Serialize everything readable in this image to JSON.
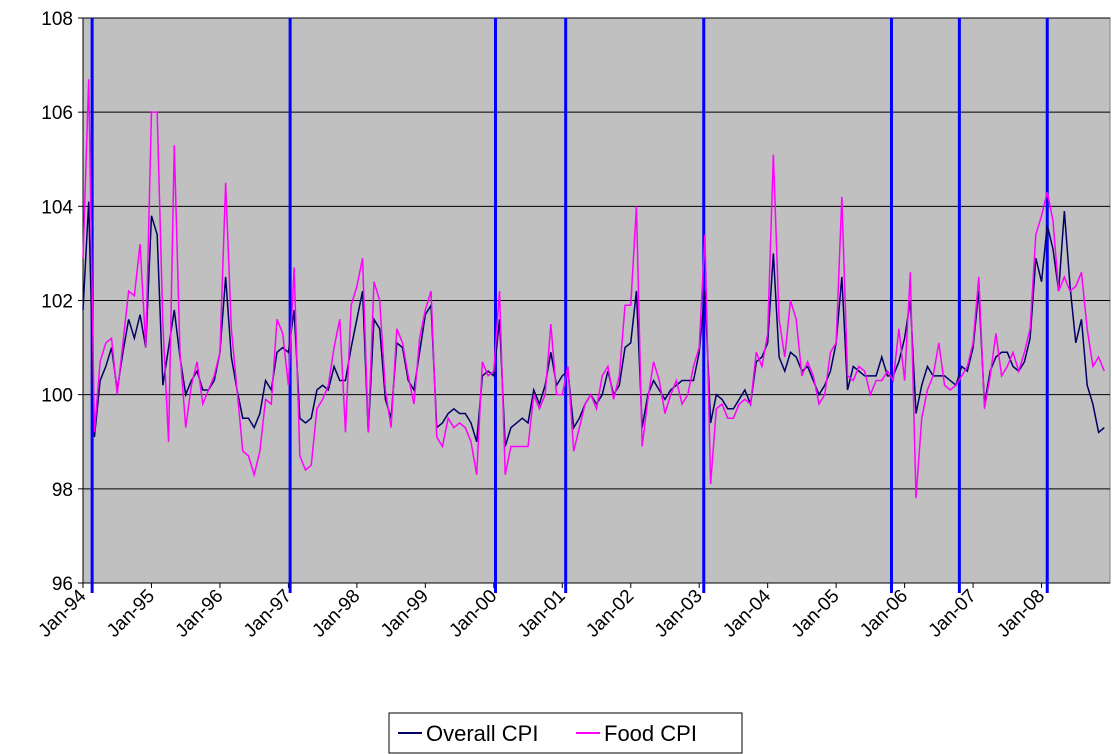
{
  "chart_data": {
    "type": "line",
    "categories": [
      "Jan-94",
      null,
      null,
      null,
      null,
      null,
      null,
      null,
      null,
      null,
      null,
      null,
      "Jan-95",
      null,
      null,
      null,
      null,
      null,
      null,
      null,
      null,
      null,
      null,
      null,
      "Jan-96",
      null,
      null,
      null,
      null,
      null,
      null,
      null,
      null,
      null,
      null,
      null,
      "Jan-97",
      null,
      null,
      null,
      null,
      null,
      null,
      null,
      null,
      null,
      null,
      null,
      "Jan-98",
      null,
      null,
      null,
      null,
      null,
      null,
      null,
      null,
      null,
      null,
      null,
      "Jan-99",
      null,
      null,
      null,
      null,
      null,
      null,
      null,
      null,
      null,
      null,
      null,
      "Jan-00",
      null,
      null,
      null,
      null,
      null,
      null,
      null,
      null,
      null,
      null,
      null,
      "Jan-01",
      null,
      null,
      null,
      null,
      null,
      null,
      null,
      null,
      null,
      null,
      null,
      "Jan-02",
      null,
      null,
      null,
      null,
      null,
      null,
      null,
      null,
      null,
      null,
      null,
      "Jan-03",
      null,
      null,
      null,
      null,
      null,
      null,
      null,
      null,
      null,
      null,
      null,
      "Jan-04",
      null,
      null,
      null,
      null,
      null,
      null,
      null,
      null,
      null,
      null,
      null,
      "Jan-05",
      null,
      null,
      null,
      null,
      null,
      null,
      null,
      null,
      null,
      null,
      null,
      "Jan-06",
      null,
      null,
      null,
      null,
      null,
      null,
      null,
      null,
      null,
      null,
      null,
      "Jan-07",
      null,
      null,
      null,
      null,
      null,
      null,
      null,
      null,
      null,
      null,
      null,
      "Jan-08",
      null,
      null,
      null,
      null,
      null,
      null,
      null,
      null,
      null,
      null,
      null
    ],
    "series": [
      {
        "name": "Overall CPI",
        "color": "#000066",
        "values": [
          101.8,
          104.1,
          99.1,
          100.3,
          100.6,
          101.0,
          100.1,
          100.9,
          101.6,
          101.2,
          101.7,
          101.0,
          103.8,
          103.4,
          100.2,
          101.0,
          101.8,
          100.8,
          100.0,
          100.3,
          100.5,
          100.1,
          100.1,
          100.3,
          100.9,
          102.5,
          100.8,
          100.1,
          99.5,
          99.5,
          99.3,
          99.6,
          100.3,
          100.1,
          100.9,
          101.0,
          100.9,
          101.8,
          99.5,
          99.4,
          99.5,
          100.1,
          100.2,
          100.1,
          100.6,
          100.3,
          100.3,
          101.0,
          101.6,
          102.2,
          99.2,
          101.6,
          101.4,
          99.9,
          99.5,
          101.1,
          101.0,
          100.3,
          100.1,
          100.9,
          101.7,
          101.9,
          99.3,
          99.4,
          99.6,
          99.7,
          99.6,
          99.6,
          99.4,
          99.0,
          100.4,
          100.5,
          100.4,
          101.6,
          98.9,
          99.3,
          99.4,
          99.5,
          99.4,
          100.1,
          99.8,
          100.2,
          100.9,
          100.2,
          100.4,
          100.5,
          99.3,
          99.5,
          99.8,
          100.0,
          99.8,
          100.0,
          100.5,
          100.0,
          100.2,
          101.0,
          101.1,
          102.2,
          99.3,
          100.0,
          100.3,
          100.1,
          99.9,
          100.1,
          100.2,
          100.3,
          100.3,
          100.3,
          100.9,
          102.2,
          99.4,
          100.0,
          99.9,
          99.7,
          99.7,
          99.9,
          100.1,
          99.8,
          100.7,
          100.8,
          101.1,
          103.0,
          100.8,
          100.5,
          100.9,
          100.8,
          100.5,
          100.6,
          100.3,
          100.0,
          100.2,
          100.5,
          101.1,
          102.5,
          100.1,
          100.6,
          100.5,
          100.4,
          100.4,
          100.4,
          100.8,
          100.4,
          100.4,
          100.7,
          101.2,
          102.0,
          99.6,
          100.2,
          100.6,
          100.4,
          100.4,
          100.4,
          100.3,
          100.2,
          100.6,
          100.5,
          101.0,
          102.2,
          99.8,
          100.5,
          100.8,
          100.9,
          100.9,
          100.6,
          100.5,
          100.7,
          101.2,
          102.9,
          102.4,
          103.6,
          103.1,
          102.2,
          103.9,
          102.3,
          101.1,
          101.6,
          100.2,
          99.8,
          99.2,
          99.3
        ]
      },
      {
        "name": "Food CPI",
        "color": "#ff00ff",
        "values": [
          102.9,
          106.7,
          99.2,
          100.7,
          101.1,
          101.2,
          100.0,
          101.1,
          102.2,
          102.1,
          103.2,
          101.0,
          106.0,
          106.0,
          101.5,
          99.0,
          105.3,
          100.9,
          99.3,
          100.2,
          100.7,
          99.8,
          100.1,
          100.4,
          100.9,
          104.5,
          101.4,
          100.1,
          98.8,
          98.7,
          98.3,
          98.8,
          99.9,
          99.8,
          101.6,
          101.3,
          100.2,
          102.7,
          98.7,
          98.4,
          98.5,
          99.7,
          99.9,
          100.2,
          101.0,
          101.6,
          99.2,
          101.9,
          102.3,
          102.9,
          99.2,
          102.4,
          102.0,
          100.1,
          99.3,
          101.4,
          101.1,
          100.4,
          99.8,
          101.2,
          101.8,
          102.2,
          99.1,
          98.9,
          99.5,
          99.3,
          99.4,
          99.3,
          99.0,
          98.3,
          100.7,
          100.4,
          100.5,
          102.2,
          98.3,
          98.9,
          98.9,
          98.9,
          98.9,
          100.0,
          99.7,
          100.0,
          101.5,
          100.0,
          100.0,
          100.6,
          98.8,
          99.3,
          99.8,
          100.0,
          99.7,
          100.4,
          100.6,
          99.9,
          100.4,
          101.9,
          101.9,
          104.0,
          98.9,
          99.9,
          100.7,
          100.3,
          99.6,
          100.0,
          100.3,
          99.8,
          100.0,
          100.6,
          101.0,
          103.4,
          98.1,
          99.7,
          99.8,
          99.5,
          99.5,
          99.8,
          99.9,
          99.8,
          100.9,
          100.6,
          101.3,
          105.1,
          101.6,
          100.8,
          102.0,
          101.6,
          100.4,
          100.7,
          100.4,
          99.8,
          100.0,
          100.9,
          101.1,
          104.2,
          100.4,
          100.3,
          100.6,
          100.5,
          100.0,
          100.3,
          100.3,
          100.5,
          100.3,
          101.4,
          100.3,
          102.6,
          97.8,
          99.5,
          100.1,
          100.4,
          101.1,
          100.2,
          100.1,
          100.2,
          100.4,
          100.6,
          101.1,
          102.5,
          99.7,
          100.4,
          101.3,
          100.4,
          100.6,
          100.9,
          100.5,
          100.9,
          101.4,
          103.4,
          103.8,
          104.3,
          103.7,
          102.2,
          102.5,
          102.2,
          102.3,
          102.6,
          101.4,
          100.6,
          100.8,
          100.5
        ]
      }
    ],
    "vertical_lines": [
      1.6,
      36.3,
      72.3,
      84.6,
      108.8,
      141.7,
      153.6,
      169.0
    ],
    "vertical_line_color": "#0000ff",
    "plot_background": "#c0c0c0",
    "ylim": [
      96,
      108
    ],
    "yticks": [
      96,
      98,
      100,
      102,
      104,
      106,
      108
    ],
    "grid": true
  }
}
